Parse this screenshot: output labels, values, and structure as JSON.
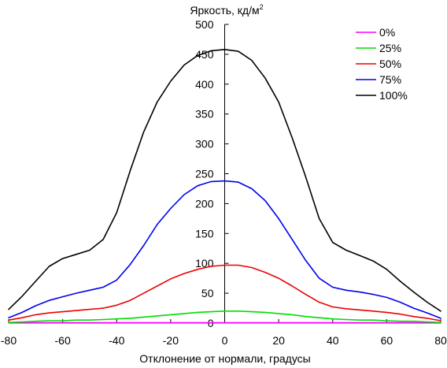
{
  "chart_data": {
    "type": "line",
    "xlabel": "Отклонение от нормали, градусы",
    "ylabel_main": "Яркость, кд/м",
    "ylabel_sup": "2",
    "xlim": [
      -80,
      80
    ],
    "ylim": [
      0,
      500
    ],
    "x_ticks": [
      "-80",
      "-60",
      "-40",
      "-20",
      "0",
      "20",
      "40",
      "60",
      "80"
    ],
    "y_ticks": [
      "0",
      "50",
      "100",
      "150",
      "200",
      "250",
      "300",
      "350",
      "400",
      "450",
      "500"
    ],
    "grid": false,
    "legend_position": "top-right",
    "x": [
      -80,
      -75,
      -70,
      -65,
      -60,
      -55,
      -50,
      -45,
      -40,
      -35,
      -30,
      -25,
      -20,
      -15,
      -10,
      -5,
      0,
      5,
      10,
      15,
      20,
      25,
      30,
      35,
      40,
      45,
      50,
      55,
      60,
      65,
      70,
      75,
      80
    ],
    "series": [
      {
        "name": "0%",
        "color": "#ff00ff",
        "values": [
          0.5,
          0.5,
          0.5,
          0.5,
          0.5,
          0.5,
          0.5,
          0.5,
          0.5,
          0.5,
          0.5,
          0.5,
          0.5,
          0.5,
          0.5,
          0.5,
          0.5,
          0.5,
          0.5,
          0.5,
          0.5,
          0.5,
          0.5,
          0.5,
          0.5,
          0.5,
          0.5,
          0.5,
          0.5,
          0.5,
          0.5,
          0.5,
          0.5
        ]
      },
      {
        "name": "25%",
        "color": "#00dd00",
        "values": [
          1,
          2,
          3,
          4,
          4,
          5,
          5,
          6,
          7,
          8,
          10,
          12,
          14,
          16,
          18,
          19,
          20,
          20,
          19,
          18,
          16,
          14,
          11,
          9,
          7,
          6,
          5,
          5,
          4,
          3,
          3,
          2,
          1
        ]
      },
      {
        "name": "50%",
        "color": "#ee0000",
        "values": [
          5,
          9,
          14,
          17,
          19,
          21,
          23,
          25,
          30,
          38,
          50,
          62,
          74,
          83,
          90,
          95,
          97,
          97,
          93,
          85,
          75,
          62,
          48,
          35,
          27,
          24,
          22,
          20,
          18,
          15,
          11,
          8,
          4
        ]
      },
      {
        "name": "75%",
        "color": "#0000ee",
        "values": [
          9,
          18,
          29,
          38,
          44,
          50,
          55,
          60,
          72,
          98,
          130,
          165,
          192,
          215,
          230,
          237,
          238,
          236,
          225,
          205,
          175,
          140,
          105,
          75,
          60,
          55,
          52,
          48,
          43,
          35,
          25,
          17,
          8
        ]
      },
      {
        "name": "100%",
        "color": "#000000",
        "values": [
          23,
          45,
          70,
          95,
          108,
          115,
          122,
          140,
          185,
          255,
          320,
          370,
          405,
          432,
          448,
          456,
          458,
          455,
          440,
          410,
          370,
          310,
          245,
          175,
          135,
          122,
          113,
          104,
          90,
          70,
          52,
          35,
          20
        ]
      }
    ]
  }
}
